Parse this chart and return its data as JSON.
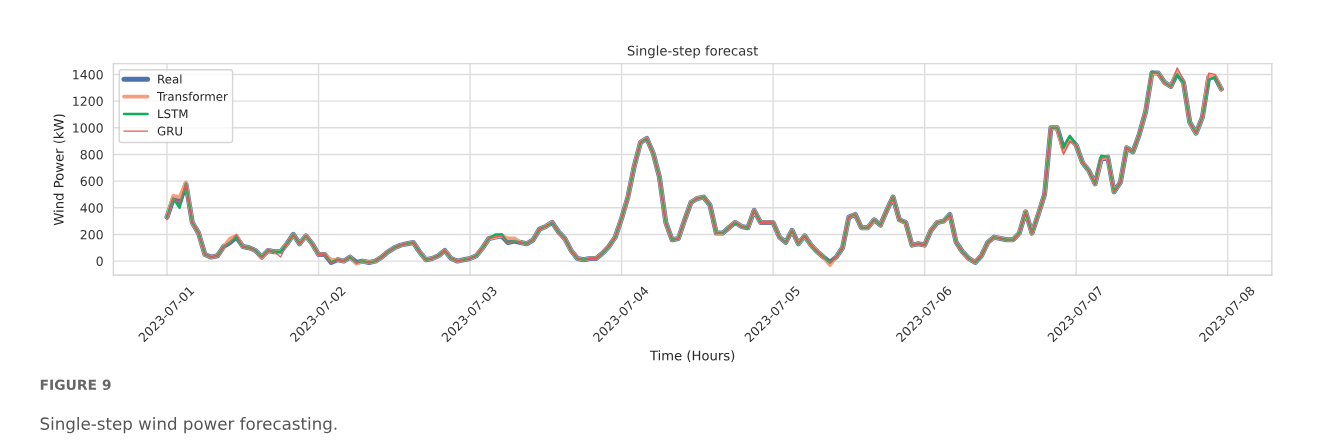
{
  "chart_data": {
    "type": "line",
    "title": "Single-step forecast",
    "xlabel": "Time (Hours)",
    "ylabel": "Wind Power (kW)",
    "annotations": [
      "FIGURE 9",
      "Single-step wind power forecasting."
    ],
    "x": [
      "2023-07-01T00:00",
      "2023-07-01T01:00",
      "2023-07-01T02:00",
      "2023-07-01T03:00",
      "2023-07-01T04:00",
      "2023-07-01T05:00",
      "2023-07-01T06:00",
      "2023-07-01T07:00",
      "2023-07-01T08:00",
      "2023-07-01T09:00",
      "2023-07-01T10:00",
      "2023-07-01T11:00",
      "2023-07-01T12:00",
      "2023-07-01T13:00",
      "2023-07-01T14:00",
      "2023-07-01T15:00",
      "2023-07-01T16:00",
      "2023-07-01T17:00",
      "2023-07-01T18:00",
      "2023-07-01T19:00",
      "2023-07-01T20:00",
      "2023-07-01T21:00",
      "2023-07-01T22:00",
      "2023-07-01T23:00",
      "2023-07-02T00:00",
      "2023-07-02T01:00",
      "2023-07-02T02:00",
      "2023-07-02T03:00",
      "2023-07-02T04:00",
      "2023-07-02T05:00",
      "2023-07-02T06:00",
      "2023-07-02T07:00",
      "2023-07-02T08:00",
      "2023-07-02T09:00",
      "2023-07-02T10:00",
      "2023-07-02T11:00",
      "2023-07-02T12:00",
      "2023-07-02T13:00",
      "2023-07-02T14:00",
      "2023-07-02T15:00",
      "2023-07-02T16:00",
      "2023-07-02T17:00",
      "2023-07-02T18:00",
      "2023-07-02T19:00",
      "2023-07-02T20:00",
      "2023-07-02T21:00",
      "2023-07-02T22:00",
      "2023-07-02T23:00",
      "2023-07-03T00:00",
      "2023-07-03T01:00",
      "2023-07-03T02:00",
      "2023-07-03T03:00",
      "2023-07-03T04:00",
      "2023-07-03T05:00",
      "2023-07-03T06:00",
      "2023-07-03T07:00",
      "2023-07-03T08:00",
      "2023-07-03T09:00",
      "2023-07-03T10:00",
      "2023-07-03T11:00",
      "2023-07-03T12:00",
      "2023-07-03T13:00",
      "2023-07-03T14:00",
      "2023-07-03T15:00",
      "2023-07-03T16:00",
      "2023-07-03T17:00",
      "2023-07-03T18:00",
      "2023-07-03T19:00",
      "2023-07-03T20:00",
      "2023-07-03T21:00",
      "2023-07-03T22:00",
      "2023-07-03T23:00",
      "2023-07-04T00:00",
      "2023-07-04T01:00",
      "2023-07-04T02:00",
      "2023-07-04T03:00",
      "2023-07-04T04:00",
      "2023-07-04T05:00",
      "2023-07-04T06:00",
      "2023-07-04T07:00",
      "2023-07-04T08:00",
      "2023-07-04T09:00",
      "2023-07-04T10:00",
      "2023-07-04T11:00",
      "2023-07-04T12:00",
      "2023-07-04T13:00",
      "2023-07-04T14:00",
      "2023-07-04T15:00",
      "2023-07-04T16:00",
      "2023-07-04T17:00",
      "2023-07-04T18:00",
      "2023-07-04T19:00",
      "2023-07-04T20:00",
      "2023-07-04T21:00",
      "2023-07-04T22:00",
      "2023-07-04T23:00",
      "2023-07-05T00:00",
      "2023-07-05T01:00",
      "2023-07-05T02:00",
      "2023-07-05T03:00",
      "2023-07-05T04:00",
      "2023-07-05T05:00",
      "2023-07-05T06:00",
      "2023-07-05T07:00",
      "2023-07-05T08:00",
      "2023-07-05T09:00",
      "2023-07-05T10:00",
      "2023-07-05T11:00",
      "2023-07-05T12:00",
      "2023-07-05T13:00",
      "2023-07-05T14:00",
      "2023-07-05T15:00",
      "2023-07-05T16:00",
      "2023-07-05T17:00",
      "2023-07-05T18:00",
      "2023-07-05T19:00",
      "2023-07-05T20:00",
      "2023-07-05T21:00",
      "2023-07-05T22:00",
      "2023-07-05T23:00",
      "2023-07-06T00:00",
      "2023-07-06T01:00",
      "2023-07-06T02:00",
      "2023-07-06T03:00",
      "2023-07-06T04:00",
      "2023-07-06T05:00",
      "2023-07-06T06:00",
      "2023-07-06T07:00",
      "2023-07-06T08:00",
      "2023-07-06T09:00",
      "2023-07-06T10:00",
      "2023-07-06T11:00",
      "2023-07-06T12:00",
      "2023-07-06T13:00",
      "2023-07-06T14:00",
      "2023-07-06T15:00",
      "2023-07-06T16:00",
      "2023-07-06T17:00",
      "2023-07-06T18:00",
      "2023-07-06T19:00",
      "2023-07-06T20:00",
      "2023-07-06T21:00",
      "2023-07-06T22:00",
      "2023-07-06T23:00",
      "2023-07-07T00:00",
      "2023-07-07T01:00",
      "2023-07-07T02:00",
      "2023-07-07T03:00",
      "2023-07-07T04:00",
      "2023-07-07T05:00",
      "2023-07-07T06:00",
      "2023-07-07T07:00",
      "2023-07-07T08:00",
      "2023-07-07T09:00",
      "2023-07-07T10:00",
      "2023-07-07T11:00",
      "2023-07-07T12:00",
      "2023-07-07T13:00",
      "2023-07-07T14:00",
      "2023-07-07T15:00",
      "2023-07-07T16:00",
      "2023-07-07T17:00",
      "2023-07-07T18:00",
      "2023-07-07T19:00",
      "2023-07-07T20:00",
      "2023-07-07T21:00",
      "2023-07-07T22:00",
      "2023-07-07T23:00"
    ],
    "series": [
      {
        "name": "Real",
        "color": "#4c72b0",
        "values": [
          330,
          470,
          440,
          580,
          290,
          210,
          50,
          30,
          40,
          110,
          140,
          180,
          110,
          100,
          80,
          30,
          80,
          70,
          70,
          130,
          200,
          130,
          190,
          130,
          50,
          50,
          -10,
          10,
          0,
          30,
          -10,
          0,
          -10,
          0,
          30,
          70,
          100,
          120,
          130,
          140,
          70,
          10,
          20,
          40,
          80,
          20,
          0,
          10,
          20,
          40,
          100,
          170,
          180,
          190,
          140,
          150,
          140,
          130,
          160,
          240,
          260,
          290,
          220,
          170,
          80,
          20,
          10,
          20,
          20,
          60,
          110,
          180,
          320,
          480,
          710,
          890,
          920,
          810,
          630,
          290,
          160,
          170,
          310,
          440,
          470,
          480,
          420,
          210,
          210,
          250,
          290,
          260,
          250,
          380,
          290,
          290,
          290,
          180,
          140,
          230,
          130,
          190,
          120,
          70,
          30,
          -10,
          30,
          100,
          330,
          350,
          250,
          250,
          310,
          270,
          380,
          480,
          310,
          290,
          120,
          130,
          120,
          230,
          290,
          300,
          350,
          140,
          70,
          20,
          -10,
          40,
          140,
          180,
          170,
          160,
          160,
          210,
          370,
          210,
          350,
          500,
          1000,
          1000,
          840,
          920,
          870,
          740,
          680,
          580,
          770,
          780,
          520,
          590,
          850,
          820,
          950,
          1120,
          1410,
          1410,
          1340,
          1310,
          1410,
          1340,
          1040,
          960,
          1080,
          1380,
          1380,
          1290
        ]
      },
      {
        "name": "Transformer",
        "color": "#f4a07e",
        "values": [
          330,
          490,
          480,
          590,
          290,
          210,
          50,
          30,
          40,
          110,
          170,
          190,
          110,
          100,
          80,
          30,
          80,
          70,
          70,
          130,
          200,
          130,
          190,
          130,
          50,
          50,
          10,
          10,
          0,
          30,
          -20,
          0,
          -10,
          0,
          30,
          70,
          100,
          120,
          130,
          140,
          70,
          10,
          20,
          40,
          80,
          20,
          0,
          10,
          20,
          40,
          100,
          170,
          180,
          190,
          170,
          170,
          140,
          130,
          160,
          240,
          260,
          290,
          220,
          170,
          80,
          20,
          10,
          20,
          20,
          60,
          110,
          180,
          320,
          480,
          710,
          890,
          920,
          810,
          630,
          290,
          160,
          170,
          310,
          440,
          470,
          480,
          420,
          210,
          210,
          250,
          290,
          260,
          250,
          380,
          290,
          290,
          290,
          180,
          140,
          230,
          130,
          190,
          120,
          70,
          30,
          -30,
          30,
          100,
          330,
          350,
          250,
          250,
          310,
          270,
          380,
          480,
          310,
          290,
          120,
          130,
          120,
          230,
          290,
          300,
          350,
          140,
          70,
          20,
          -10,
          40,
          140,
          180,
          170,
          160,
          160,
          210,
          370,
          210,
          350,
          500,
          1000,
          1000,
          820,
          910,
          870,
          740,
          680,
          580,
          770,
          780,
          520,
          590,
          850,
          820,
          950,
          1120,
          1410,
          1410,
          1340,
          1310,
          1420,
          1340,
          1040,
          960,
          1080,
          1390,
          1390,
          1290
        ]
      },
      {
        "name": "LSTM",
        "color": "#14ad5b",
        "values": [
          330,
          470,
          400,
          580,
          290,
          210,
          50,
          30,
          40,
          110,
          140,
          180,
          110,
          100,
          80,
          30,
          80,
          70,
          70,
          130,
          200,
          130,
          190,
          130,
          50,
          50,
          -10,
          10,
          0,
          30,
          -10,
          0,
          -10,
          0,
          30,
          70,
          100,
          120,
          130,
          140,
          70,
          10,
          20,
          40,
          80,
          20,
          0,
          10,
          20,
          40,
          100,
          170,
          200,
          200,
          140,
          150,
          140,
          130,
          160,
          240,
          260,
          290,
          220,
          170,
          80,
          20,
          10,
          20,
          20,
          60,
          110,
          180,
          320,
          480,
          710,
          890,
          920,
          810,
          630,
          290,
          160,
          170,
          310,
          440,
          470,
          480,
          420,
          210,
          210,
          250,
          290,
          260,
          250,
          380,
          290,
          290,
          290,
          180,
          140,
          230,
          130,
          190,
          120,
          70,
          30,
          -10,
          30,
          100,
          330,
          350,
          250,
          250,
          310,
          270,
          380,
          480,
          310,
          290,
          120,
          130,
          120,
          230,
          290,
          300,
          350,
          140,
          70,
          20,
          -10,
          40,
          140,
          180,
          170,
          160,
          160,
          210,
          370,
          210,
          350,
          500,
          1000,
          1000,
          850,
          940,
          870,
          740,
          680,
          580,
          790,
          780,
          520,
          590,
          850,
          820,
          950,
          1120,
          1420,
          1410,
          1340,
          1310,
          1400,
          1340,
          1040,
          960,
          1080,
          1360,
          1380,
          1290
        ]
      },
      {
        "name": "GRU",
        "color": "#e85a5c",
        "values": [
          310,
          470,
          440,
          580,
          290,
          210,
          50,
          30,
          40,
          110,
          140,
          200,
          110,
          100,
          80,
          30,
          80,
          70,
          30,
          130,
          200,
          130,
          190,
          130,
          50,
          50,
          -20,
          10,
          0,
          30,
          -10,
          0,
          -10,
          0,
          30,
          70,
          100,
          120,
          130,
          140,
          70,
          10,
          20,
          40,
          80,
          20,
          0,
          10,
          20,
          40,
          100,
          170,
          180,
          190,
          130,
          150,
          140,
          130,
          160,
          240,
          260,
          290,
          220,
          170,
          80,
          20,
          10,
          20,
          20,
          60,
          110,
          180,
          320,
          480,
          710,
          890,
          920,
          810,
          630,
          290,
          160,
          170,
          310,
          440,
          470,
          480,
          420,
          210,
          210,
          250,
          290,
          260,
          250,
          380,
          290,
          290,
          290,
          180,
          140,
          230,
          130,
          190,
          120,
          70,
          30,
          -10,
          30,
          100,
          330,
          350,
          250,
          250,
          310,
          270,
          380,
          480,
          310,
          290,
          120,
          130,
          120,
          230,
          290,
          300,
          350,
          140,
          70,
          20,
          -10,
          40,
          140,
          180,
          170,
          160,
          160,
          210,
          370,
          210,
          350,
          500,
          1000,
          1000,
          800,
          900,
          870,
          740,
          680,
          580,
          770,
          780,
          520,
          590,
          850,
          820,
          950,
          1120,
          1410,
          1410,
          1340,
          1310,
          1450,
          1360,
          1040,
          960,
          1080,
          1410,
          1400,
          1290
        ]
      }
    ],
    "xlim": [
      "2023-06-30T15:30",
      "2023-07-08T07:00"
    ],
    "ylim": [
      -105,
      1480
    ],
    "xticks": [
      "2023-07-01",
      "2023-07-02",
      "2023-07-03",
      "2023-07-04",
      "2023-07-05",
      "2023-07-06",
      "2023-07-07",
      "2023-07-08"
    ],
    "yticks": [
      0,
      200,
      400,
      600,
      800,
      1000,
      1200,
      1400
    ],
    "grid": true,
    "legend": "top left",
    "line_style": "solid",
    "marker": "none"
  }
}
